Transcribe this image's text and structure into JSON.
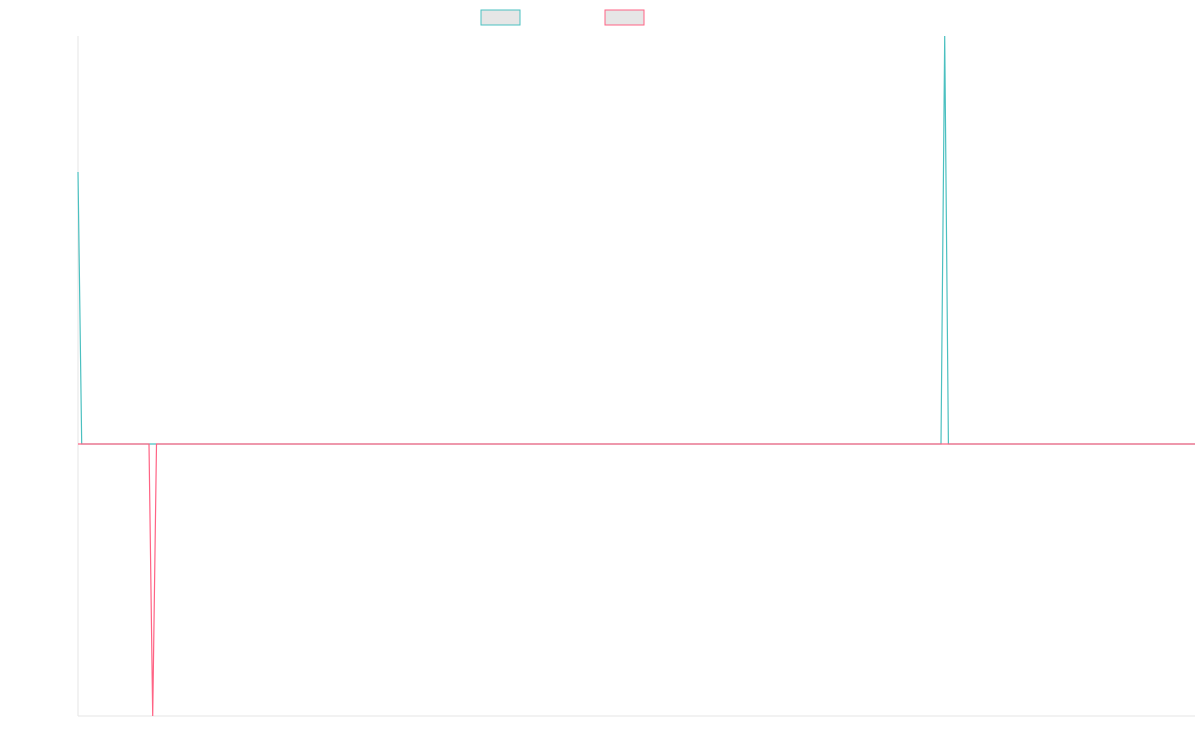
{
  "chart_data": {
    "type": "line",
    "title": "",
    "xlabel": "",
    "ylabel": "",
    "legend_placement": "top-center",
    "grid": false,
    "x_count": 300,
    "ylim": [
      -1.0,
      1.5
    ],
    "series": [
      {
        "color": "#4bc0c0",
        "fill": "#e6e6e6",
        "points": [
          [
            0,
            1.0
          ],
          [
            1,
            0
          ],
          [
            231,
            0
          ],
          [
            232,
            1.5
          ],
          [
            233,
            0
          ],
          [
            299,
            0
          ]
        ]
      },
      {
        "color": "#ff6384",
        "fill": "#e6e6e6",
        "points": [
          [
            0,
            0
          ],
          [
            19,
            0
          ],
          [
            20,
            -1.0
          ],
          [
            21,
            0
          ],
          [
            299,
            0
          ]
        ]
      }
    ]
  }
}
